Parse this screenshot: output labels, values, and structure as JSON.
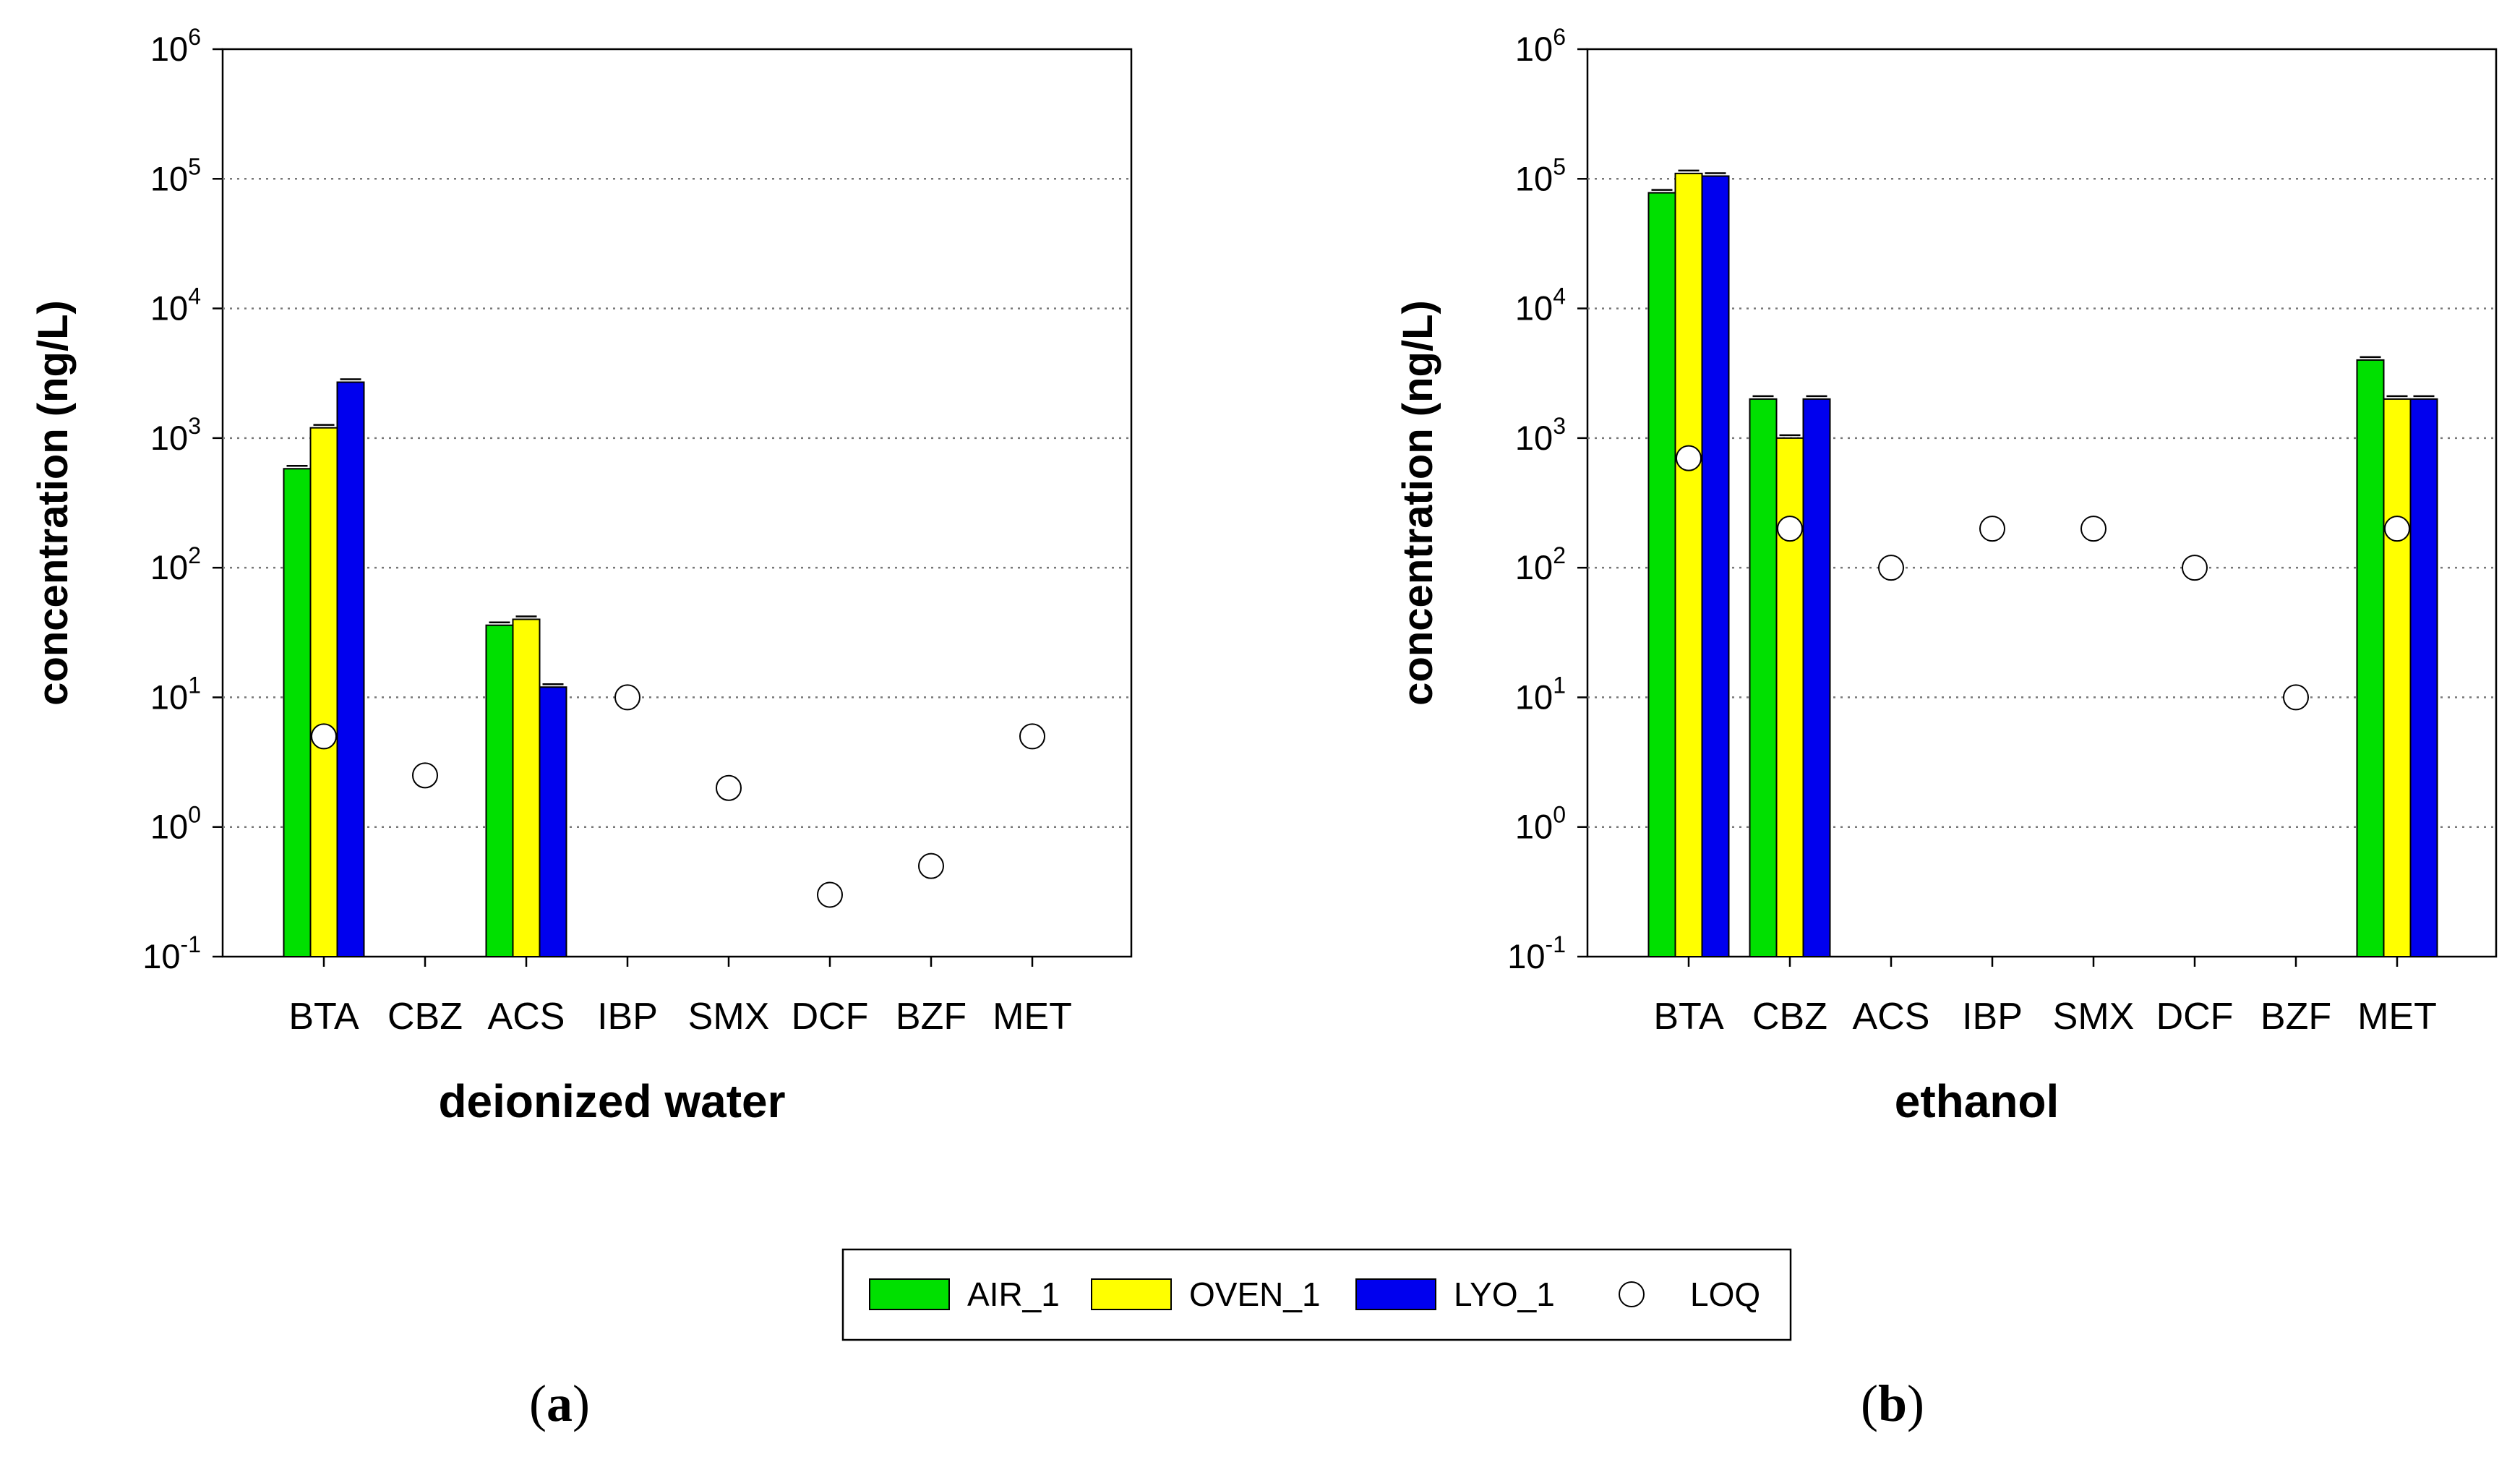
{
  "colors": {
    "AIR_1": "#00e000",
    "OVEN_1": "#ffff00",
    "LYO_1": "#0000ee",
    "LOQ": "#ffffff"
  },
  "legend": {
    "items": [
      "AIR_1",
      "OVEN_1",
      "LYO_1",
      "LOQ"
    ]
  },
  "panel_labels": {
    "a": "a",
    "b": "b"
  },
  "chart_data": [
    {
      "type": "bar",
      "title": "",
      "xlabel": "deionized water",
      "ylabel": "concentration (ng/L)",
      "yscale": "log",
      "ylim": [
        0.1,
        1000000
      ],
      "yticks": [
        {
          "base": "10",
          "exp": "-1"
        },
        {
          "base": "10",
          "exp": "0"
        },
        {
          "base": "10",
          "exp": "1"
        },
        {
          "base": "10",
          "exp": "2"
        },
        {
          "base": "10",
          "exp": "3"
        },
        {
          "base": "10",
          "exp": "4"
        },
        {
          "base": "10",
          "exp": "5"
        },
        {
          "base": "10",
          "exp": "6"
        }
      ],
      "categories": [
        "BTA",
        "CBZ",
        "ACS",
        "IBP",
        "SMX",
        "DCF",
        "BZF",
        "MET"
      ],
      "series": [
        {
          "name": "AIR_1",
          "values": [
            580,
            null,
            36,
            null,
            null,
            null,
            null,
            null
          ]
        },
        {
          "name": "OVEN_1",
          "values": [
            1200,
            null,
            40,
            null,
            null,
            null,
            null,
            null
          ]
        },
        {
          "name": "LYO_1",
          "values": [
            2700,
            null,
            12,
            null,
            null,
            null,
            null,
            null
          ]
        }
      ],
      "loq": [
        5,
        2.5,
        null,
        10,
        2,
        0.3,
        0.5,
        5
      ],
      "grid": "horizontal dotted"
    },
    {
      "type": "bar",
      "title": "",
      "xlabel": "ethanol",
      "ylabel": "concentration (ng/L)",
      "yscale": "log",
      "ylim": [
        0.1,
        1000000
      ],
      "yticks": [
        {
          "base": "10",
          "exp": "-1"
        },
        {
          "base": "10",
          "exp": "0"
        },
        {
          "base": "10",
          "exp": "1"
        },
        {
          "base": "10",
          "exp": "2"
        },
        {
          "base": "10",
          "exp": "3"
        },
        {
          "base": "10",
          "exp": "4"
        },
        {
          "base": "10",
          "exp": "5"
        },
        {
          "base": "10",
          "exp": "6"
        }
      ],
      "categories": [
        "BTA",
        "CBZ",
        "ACS",
        "IBP",
        "SMX",
        "DCF",
        "BZF",
        "MET"
      ],
      "series": [
        {
          "name": "AIR_1",
          "values": [
            78000,
            2000,
            null,
            null,
            null,
            null,
            null,
            4000
          ]
        },
        {
          "name": "OVEN_1",
          "values": [
            110000,
            1000,
            null,
            null,
            null,
            null,
            null,
            2000
          ]
        },
        {
          "name": "LYO_1",
          "values": [
            105000,
            2000,
            null,
            null,
            null,
            null,
            null,
            2000
          ]
        }
      ],
      "loq": [
        700,
        200,
        100,
        200,
        200,
        100,
        10,
        200
      ],
      "grid": "horizontal dotted"
    }
  ]
}
